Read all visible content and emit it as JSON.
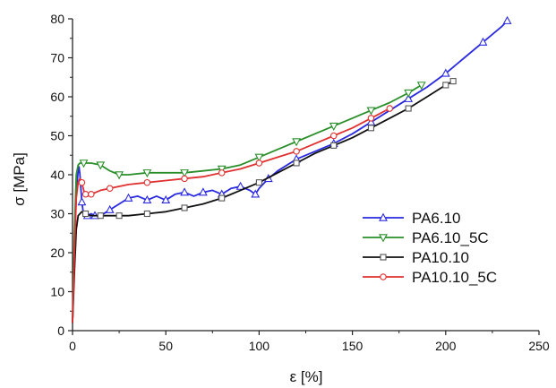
{
  "chart_data": {
    "type": "line",
    "title": "",
    "xlabel": "ε [%]",
    "ylabel": "σ [MPa]",
    "xlim": [
      0,
      250
    ],
    "ylim": [
      0,
      80
    ],
    "xticks": [
      0,
      50,
      100,
      150,
      200,
      250
    ],
    "yticks": [
      0,
      10,
      20,
      30,
      40,
      50,
      60,
      70,
      80
    ],
    "grid": false,
    "legend_position": "lower-right",
    "series": [
      {
        "name": "PA6.10",
        "color": "#2a2ae0",
        "marker": "triangle-up",
        "x": [
          0,
          1,
          2,
          3,
          3.5,
          4,
          5,
          6,
          8,
          10,
          12,
          15,
          20,
          25,
          30,
          35,
          40,
          45,
          50,
          55,
          60,
          65,
          70,
          75,
          80,
          85,
          90,
          95,
          98,
          100,
          105,
          110,
          120,
          130,
          140,
          150,
          160,
          170,
          180,
          190,
          200,
          210,
          220,
          230,
          233
        ],
        "y": [
          2,
          20,
          35,
          41,
          42,
          40,
          33,
          29.5,
          29.5,
          30,
          29.5,
          29.5,
          31,
          32.5,
          34,
          34.5,
          33.5,
          34.5,
          33.5,
          35,
          35.5,
          34.5,
          35.5,
          36,
          35,
          36.5,
          37,
          36,
          35,
          36.5,
          39,
          41,
          44,
          46,
          48,
          50.5,
          53.5,
          56.5,
          59.5,
          62.5,
          66,
          70,
          74,
          78,
          79.5
        ]
      },
      {
        "name": "PA6.10_5C",
        "color": "#2a8f2a",
        "marker": "triangle-down",
        "x": [
          0,
          1,
          2,
          3,
          4,
          6,
          10,
          15,
          20,
          25,
          30,
          40,
          50,
          60,
          70,
          80,
          90,
          100,
          110,
          120,
          130,
          140,
          150,
          160,
          170,
          180,
          187
        ],
        "y": [
          2,
          25,
          40,
          42.5,
          43,
          43,
          43,
          42.5,
          41,
          40,
          40,
          40.5,
          40.5,
          40.5,
          41,
          41.5,
          42.5,
          44.5,
          46.5,
          48.5,
          50.5,
          52.5,
          54.5,
          56.5,
          58.5,
          61,
          63
        ]
      },
      {
        "name": "PA10.10",
        "color": "#111111",
        "marker": "square",
        "x": [
          0,
          1,
          2,
          3,
          4,
          5,
          7,
          10,
          15,
          20,
          25,
          30,
          40,
          50,
          60,
          70,
          80,
          90,
          100,
          110,
          120,
          130,
          140,
          150,
          160,
          170,
          180,
          190,
          200,
          204
        ],
        "y": [
          2,
          15,
          26,
          29.5,
          30,
          30.5,
          30,
          29.5,
          29.5,
          29.5,
          29.5,
          29.5,
          30,
          30.5,
          31.5,
          32.5,
          34,
          36,
          38,
          40.5,
          43,
          45.5,
          47.5,
          49.5,
          52,
          54.5,
          57,
          60,
          63,
          64
        ]
      },
      {
        "name": "PA10.10_5C",
        "color": "#e03030",
        "marker": "circle",
        "x": [
          0,
          1,
          2,
          3,
          4,
          5,
          6,
          7,
          8,
          10,
          15,
          20,
          30,
          40,
          50,
          60,
          70,
          80,
          90,
          100,
          110,
          120,
          130,
          140,
          150,
          160,
          170
        ],
        "y": [
          2,
          20,
          34,
          38,
          39,
          38,
          36,
          35,
          34.5,
          35,
          36,
          36.5,
          37.5,
          38,
          38.5,
          39,
          39.5,
          40.5,
          41.5,
          43,
          44.5,
          46,
          48,
          50,
          52,
          54.5,
          57
        ]
      }
    ]
  }
}
